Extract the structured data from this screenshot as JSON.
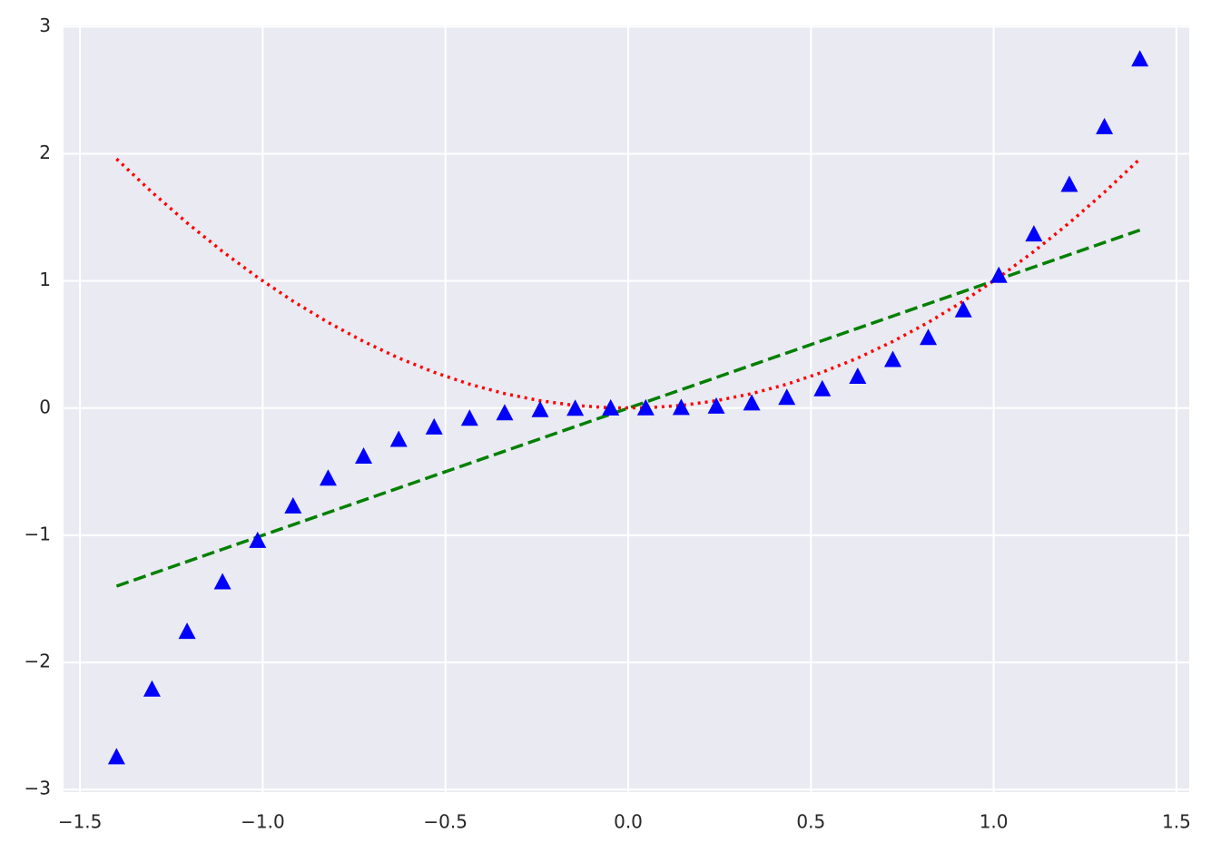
{
  "chart_data": {
    "type": "line",
    "x": [
      -1.4,
      -1.303,
      -1.207,
      -1.11,
      -1.014,
      -0.917,
      -0.821,
      -0.724,
      -0.628,
      -0.531,
      -0.434,
      -0.338,
      -0.241,
      -0.145,
      -0.048,
      0.048,
      0.145,
      0.241,
      0.338,
      0.434,
      0.531,
      0.628,
      0.724,
      0.821,
      0.917,
      1.014,
      1.11,
      1.207,
      1.303,
      1.4
    ],
    "series": [
      {
        "color": "#008000",
        "linestyle": "dashed",
        "marker": "none",
        "values": [
          -1.4,
          -1.303,
          -1.207,
          -1.11,
          -1.014,
          -0.917,
          -0.821,
          -0.724,
          -0.628,
          -0.531,
          -0.434,
          -0.338,
          -0.241,
          -0.145,
          -0.048,
          0.048,
          0.145,
          0.241,
          0.338,
          0.434,
          0.531,
          0.628,
          0.724,
          0.821,
          0.917,
          1.014,
          1.11,
          1.207,
          1.303,
          1.4
        ]
      },
      {
        "color": "#ff0000",
        "linestyle": "dotted",
        "marker": "none",
        "values": [
          1.96,
          1.698,
          1.457,
          1.232,
          1.028,
          0.841,
          0.674,
          0.524,
          0.394,
          0.282,
          0.188,
          0.114,
          0.058,
          0.021,
          0.002,
          0.002,
          0.021,
          0.058,
          0.114,
          0.188,
          0.282,
          0.394,
          0.524,
          0.674,
          0.841,
          1.028,
          1.232,
          1.457,
          1.698,
          1.96
        ]
      },
      {
        "color": "#0000ff",
        "linestyle": "none",
        "marker": "triangle",
        "values": [
          -2.744,
          -2.212,
          -1.758,
          -1.368,
          -1.042,
          -0.771,
          -0.553,
          -0.38,
          -0.248,
          -0.15,
          -0.082,
          -0.039,
          -0.014,
          -0.003,
          -0.0001,
          0.0001,
          0.003,
          0.014,
          0.039,
          0.082,
          0.15,
          0.248,
          0.38,
          0.553,
          0.771,
          1.042,
          1.368,
          1.758,
          2.212,
          2.744
        ]
      }
    ],
    "xlim": [
      -1.545,
      1.535
    ],
    "ylim": [
      -3.02,
      3.01
    ],
    "xticks": [
      {
        "value": -1.5,
        "label": "−1.5"
      },
      {
        "value": -1.0,
        "label": "−1.0"
      },
      {
        "value": -0.5,
        "label": "−0.5"
      },
      {
        "value": 0,
        "label": "0.0"
      },
      0.5,
      {
        "value": 1.0,
        "label": "1.0"
      },
      1.5
    ],
    "yticks": [
      {
        "value": -3,
        "label": "−3"
      },
      {
        "value": -2,
        "label": "−2"
      },
      {
        "value": -1,
        "label": "−1"
      },
      0,
      1,
      2,
      3
    ],
    "grid": true
  }
}
